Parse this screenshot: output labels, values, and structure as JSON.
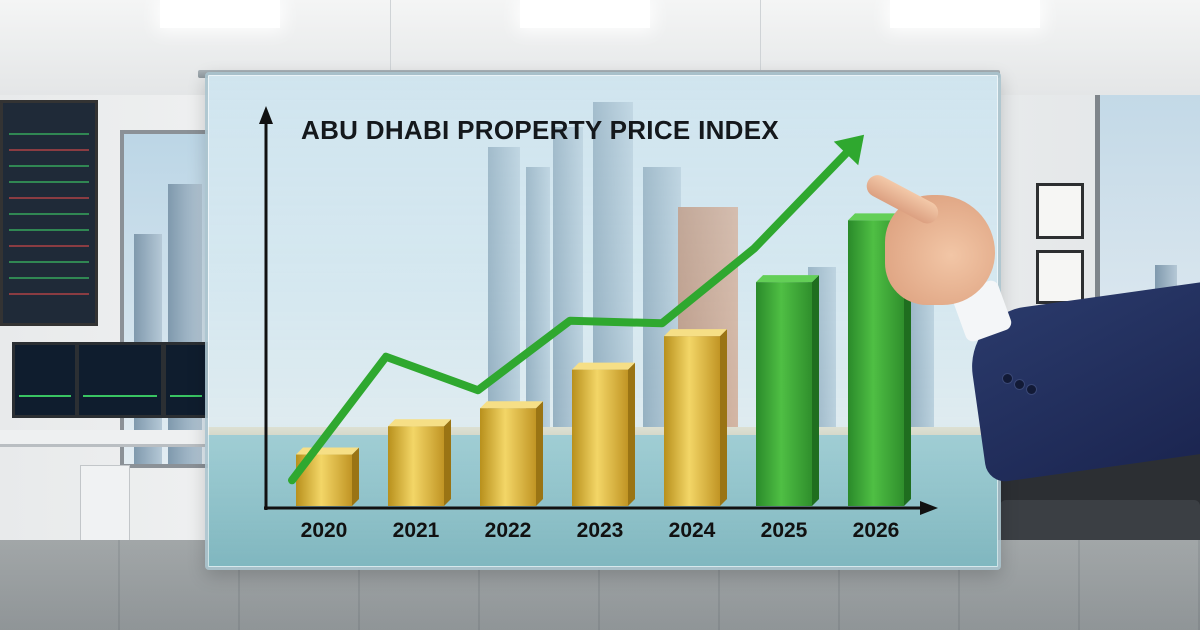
{
  "chart_data": {
    "type": "bar",
    "title": "ABU DHABI PROPERTY PRICE INDEX",
    "categories": [
      "2020",
      "2021",
      "2022",
      "2023",
      "2024",
      "2025",
      "2026"
    ],
    "values": [
      1.0,
      1.55,
      1.9,
      2.65,
      3.3,
      4.35,
      5.55
    ],
    "bar_colors": [
      "#c9a227",
      "#c9a227",
      "#c9a227",
      "#c9a227",
      "#c9a227",
      "#3a9a36",
      "#3a9a36"
    ],
    "trend_line": {
      "color": "#2fa82f",
      "values": [
        0.5,
        2.9,
        2.25,
        3.6,
        3.55,
        5.0,
        6.85
      ]
    },
    "ylim": [
      0,
      7.5
    ],
    "xlabel": "",
    "ylabel": "",
    "grid": false,
    "legend": "none"
  }
}
